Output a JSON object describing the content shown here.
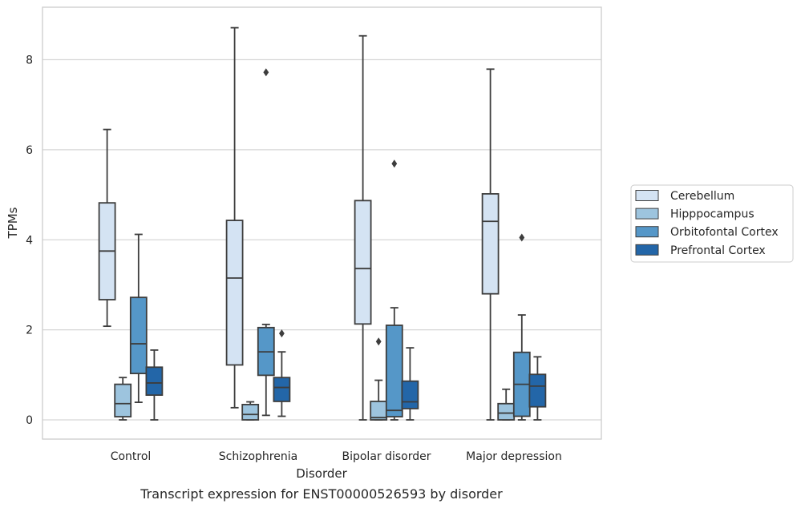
{
  "caption": "Transcript expression for ENST00000526593 by disorder",
  "chart_data": {
    "type": "box",
    "title": "",
    "xlabel": "Disorder",
    "ylabel": "TPMs",
    "ylim": [
      -0.42,
      9.16
    ],
    "yticks": [
      0,
      2,
      4,
      6,
      8
    ],
    "grid": "horizontal",
    "legend_position": "right",
    "categories": [
      "Control",
      "Schizophrenia",
      "Bipolar disorder",
      "Major depression"
    ],
    "series": [
      {
        "name": "Cerebellum",
        "color": "#d4e3f3",
        "boxes": [
          {
            "whisker_low": 2.08,
            "q1": 2.67,
            "median": 3.75,
            "q3": 4.82,
            "whisker_high": 6.45,
            "outliers": []
          },
          {
            "whisker_low": 0.27,
            "q1": 1.22,
            "median": 3.15,
            "q3": 4.43,
            "whisker_high": 8.71,
            "outliers": []
          },
          {
            "whisker_low": 0.0,
            "q1": 2.13,
            "median": 3.36,
            "q3": 4.87,
            "whisker_high": 8.53,
            "outliers": []
          },
          {
            "whisker_low": 0.0,
            "q1": 2.8,
            "median": 4.41,
            "q3": 5.02,
            "whisker_high": 7.79,
            "outliers": []
          }
        ]
      },
      {
        "name": "Hipppocampus",
        "color": "#9dc4de",
        "boxes": [
          {
            "whisker_low": 0.0,
            "q1": 0.07,
            "median": 0.36,
            "q3": 0.79,
            "whisker_high": 0.94,
            "outliers": []
          },
          {
            "whisker_low": 0.0,
            "q1": 0.0,
            "median": 0.12,
            "q3": 0.34,
            "whisker_high": 0.4,
            "outliers": []
          },
          {
            "whisker_low": 0.0,
            "q1": 0.0,
            "median": 0.05,
            "q3": 0.41,
            "whisker_high": 0.88,
            "outliers": [
              1.74
            ]
          },
          {
            "whisker_low": 0.0,
            "q1": 0.0,
            "median": 0.15,
            "q3": 0.36,
            "whisker_high": 0.68,
            "outliers": []
          }
        ]
      },
      {
        "name": "Orbitofontal Cortex",
        "color": "#5597c8",
        "boxes": [
          {
            "whisker_low": 0.39,
            "q1": 1.03,
            "median": 1.69,
            "q3": 2.72,
            "whisker_high": 4.12,
            "outliers": []
          },
          {
            "whisker_low": 0.1,
            "q1": 0.99,
            "median": 1.51,
            "q3": 2.05,
            "whisker_high": 2.12,
            "outliers": [
              7.72
            ]
          },
          {
            "whisker_low": 0.0,
            "q1": 0.07,
            "median": 0.21,
            "q3": 2.1,
            "whisker_high": 2.49,
            "outliers": [
              5.69
            ]
          },
          {
            "whisker_low": 0.0,
            "q1": 0.08,
            "median": 0.79,
            "q3": 1.5,
            "whisker_high": 2.33,
            "outliers": [
              4.05
            ]
          }
        ]
      },
      {
        "name": "Prefrontal Cortex",
        "color": "#2366a8",
        "boxes": [
          {
            "whisker_low": 0.0,
            "q1": 0.55,
            "median": 0.82,
            "q3": 1.17,
            "whisker_high": 1.55,
            "outliers": []
          },
          {
            "whisker_low": 0.08,
            "q1": 0.41,
            "median": 0.72,
            "q3": 0.94,
            "whisker_high": 1.51,
            "outliers": [
              1.92
            ]
          },
          {
            "whisker_low": 0.0,
            "q1": 0.25,
            "median": 0.4,
            "q3": 0.86,
            "whisker_high": 1.6,
            "outliers": []
          },
          {
            "whisker_low": 0.0,
            "q1": 0.29,
            "median": 0.75,
            "q3": 1.01,
            "whisker_high": 1.4,
            "outliers": []
          }
        ]
      }
    ]
  }
}
